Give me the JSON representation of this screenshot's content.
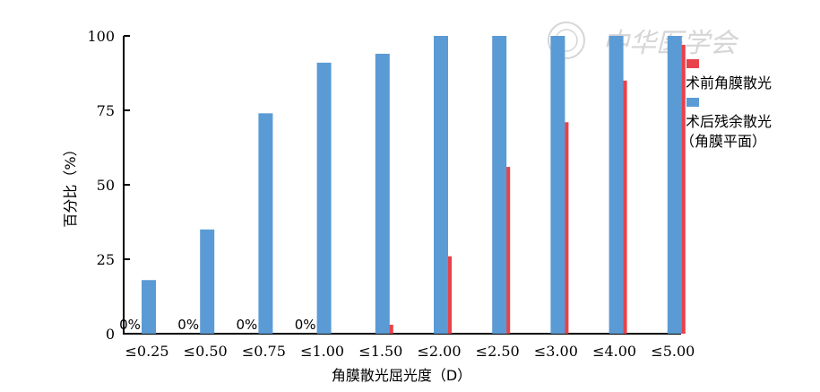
{
  "chart_data": {
    "type": "bar",
    "categories": [
      "≤0.25",
      "≤0.50",
      "≤0.75",
      "≤1.00",
      "≤1.50",
      "≤2.00",
      "≤2.50",
      "≤3.00",
      "≤4.00",
      "≤5.00"
    ],
    "series": [
      {
        "name": "术前角膜散光",
        "color": "#e8424a",
        "values": [
          0,
          0,
          0,
          0,
          3,
          26,
          56,
          71,
          85,
          97
        ]
      },
      {
        "name": "术后残余散光（角膜平面）",
        "legend_lines": [
          "术后残余散光",
          "（角膜平面）"
        ],
        "color": "#5b9bd5",
        "values": [
          18,
          35,
          74,
          91,
          94,
          100,
          100,
          100,
          100,
          100
        ]
      }
    ],
    "data_labels": [
      "0%",
      "0%",
      "0%",
      "0%"
    ],
    "xlabel": "角膜散光屈光度（D）",
    "ylabel": "百分比（%）",
    "ylim": [
      0,
      100
    ],
    "yticks": [
      "0",
      "25",
      "50",
      "75",
      "100"
    ],
    "grid": false,
    "legend_position": "right"
  },
  "watermark": {
    "text": "中华医学会"
  }
}
